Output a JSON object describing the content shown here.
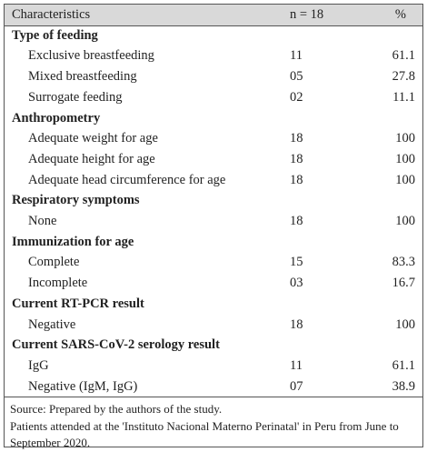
{
  "table": {
    "header": [
      "Characteristics",
      "n = 18",
      "%"
    ],
    "sections": [
      {
        "title": "Type of feeding",
        "rows": [
          [
            "Exclusive breastfeeding",
            "11",
            "61.1"
          ],
          [
            "Mixed breastfeeding",
            "05",
            "27.8"
          ],
          [
            "Surrogate feeding",
            "02",
            "11.1"
          ]
        ]
      },
      {
        "title": "Anthropometry",
        "rows": [
          [
            "Adequate weight for age",
            "18",
            "100"
          ],
          [
            "Adequate height for age",
            "18",
            "100"
          ],
          [
            "Adequate head circumference for age",
            "18",
            "100"
          ]
        ]
      },
      {
        "title": "Respiratory symptoms",
        "rows": [
          [
            "None",
            "18",
            "100"
          ]
        ]
      },
      {
        "title": "Immunization for age",
        "rows": [
          [
            "Complete",
            "15",
            "83.3"
          ],
          [
            "Incomplete",
            "03",
            "16.7"
          ]
        ]
      },
      {
        "title": "Current RT-PCR result",
        "rows": [
          [
            "Negative",
            "18",
            "100"
          ]
        ]
      },
      {
        "title": "Current SARS-CoV-2 serology result",
        "rows": [
          [
            "IgG",
            "11",
            "61.1"
          ],
          [
            "Negative (IgM, IgG)",
            "07",
            "38.9"
          ]
        ]
      }
    ],
    "notes": [
      "Source: Prepared by the authors of the study.",
      "Patients attended at the 'Instituto Nacional Materno Perinatal' in Peru from June to September 2020."
    ]
  }
}
